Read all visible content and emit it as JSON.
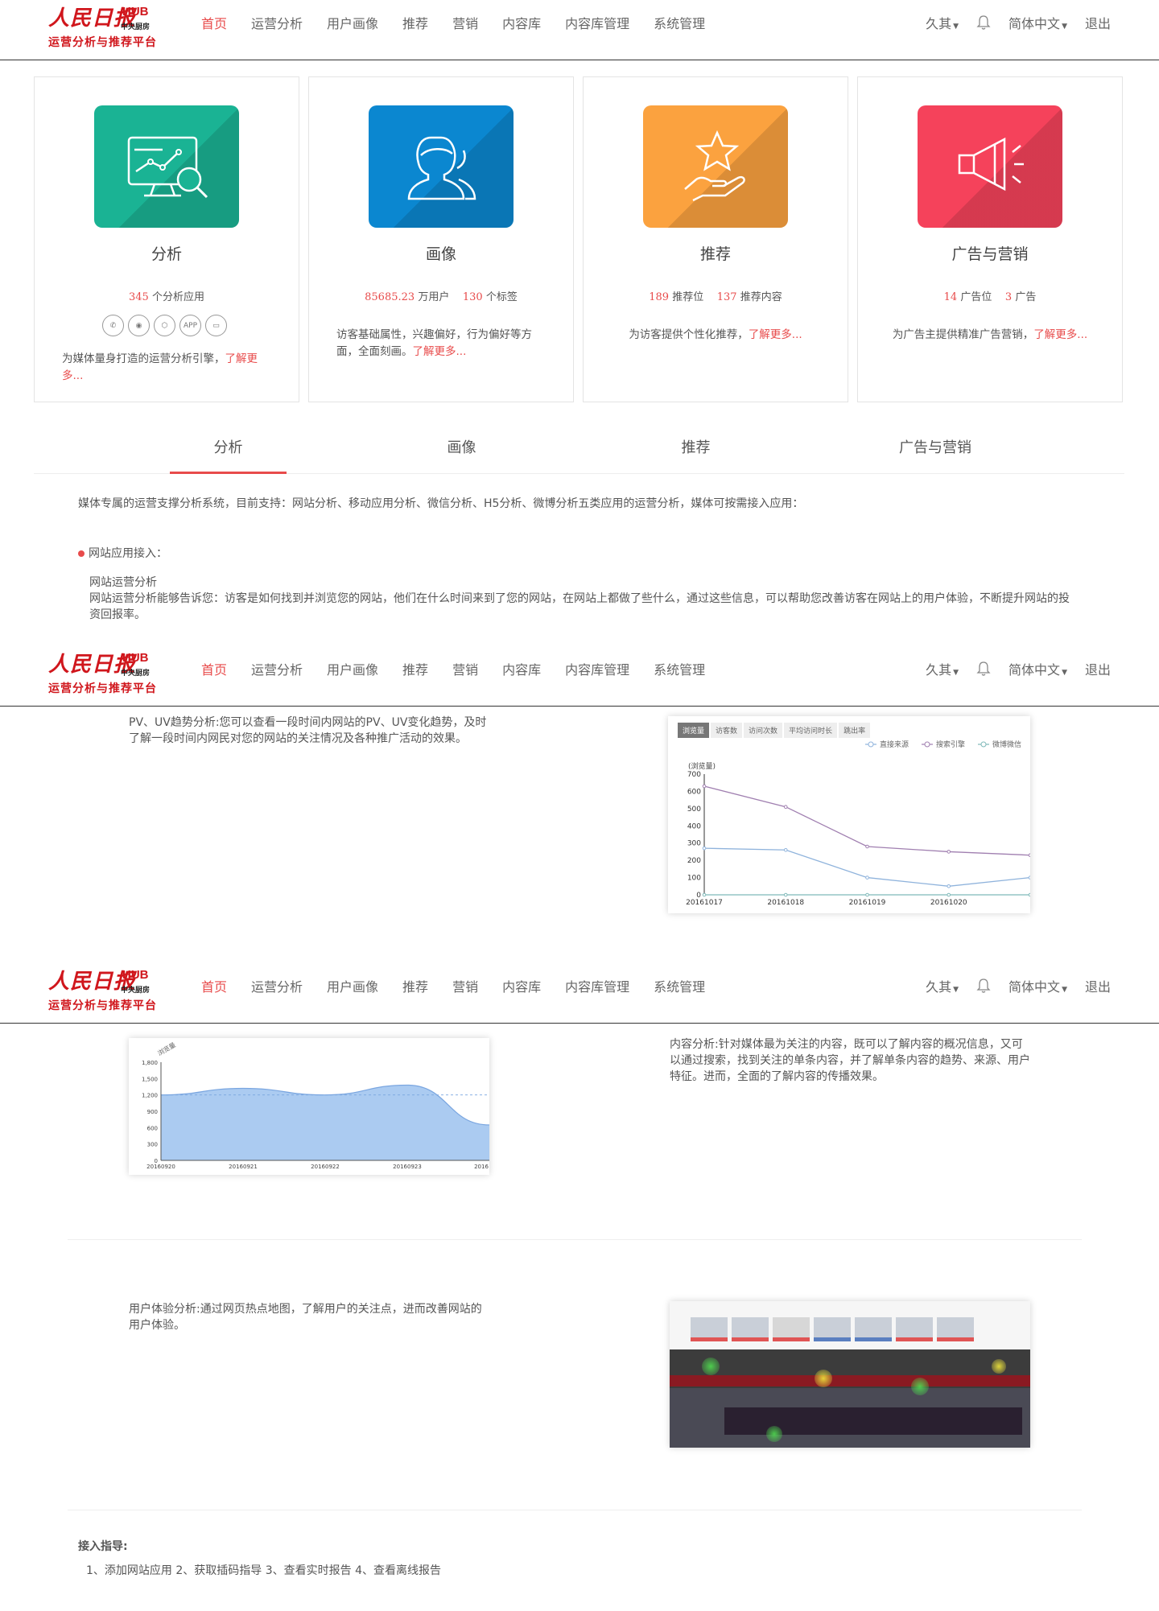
{
  "header": {
    "logo_main": "人民日报",
    "logo_hub": "HUB",
    "logo_sub": "中央厨房",
    "logo_tagline": "运营分析与推荐平台",
    "nav": [
      "首页",
      "运营分析",
      "用户画像",
      "推荐",
      "营销",
      "内容库",
      "内容库管理",
      "系统管理"
    ],
    "user": "久其",
    "language": "简体中文",
    "logout": "退出"
  },
  "cards": [
    {
      "title": "分析",
      "stat1_num": "345",
      "stat1_label": "个分析应用",
      "desc": "为媒体量身打造的运营分析引擎，",
      "more": "了解更多...",
      "icon": "monitor-chart-icon",
      "color": "#1ab394",
      "social": [
        "微信",
        "微博",
        "H5",
        "APP",
        "PC"
      ]
    },
    {
      "title": "画像",
      "stat1_num": "85685.23",
      "stat1_label": "万用户",
      "stat2_num": "130",
      "stat2_label": "个标签",
      "desc": "访客基础属性，兴趣偏好，行为偏好等方面，全面刻画。",
      "more": "了解更多...",
      "icon": "user-profile-icon",
      "color": "#0b87d0"
    },
    {
      "title": "推荐",
      "stat1_num": "189",
      "stat1_label": "推荐位",
      "stat2_num": "137",
      "stat2_label": "推荐内容",
      "desc": "为访客提供个性化推荐，",
      "more": "了解更多...",
      "icon": "hand-star-icon",
      "color": "#fba23f"
    },
    {
      "title": "广告与营销",
      "stat1_num": "14",
      "stat1_label": "广告位",
      "stat2_num": "3",
      "stat2_label": "广告",
      "desc": "为广告主提供精准广告营销，",
      "more": "了解更多...",
      "icon": "megaphone-icon",
      "color": "#f5425b"
    }
  ],
  "tabs": [
    "分析",
    "画像",
    "推荐",
    "广告与营销"
  ],
  "intro": "媒体专属的运营支撑分析系统，目前支持：网站分析、移动应用分析、微信分析、H5分析、微博分析五类应用的运营分析，媒体可按需接入应用：",
  "site_access_title": "网站应用接入：",
  "site_ops_title": "网站运营分析",
  "site_ops_desc": "网站运营分析能够告诉您：访客是如何找到并浏览您的网站，他们在什么时间来到了您的网站，在网站上都做了些什么，通过这些信息，可以帮助您改善访客在网站上的用户体验，不断提升网站的投资回报率。",
  "pv_text": "PV、UV趋势分析:您可以查看一段时间内网站的PV、UV变化趋势，及时了解一段时间内网民对您的网站的关注情况及各种推广活动的效果。",
  "content_text": "内容分析:针对媒体最为关注的内容，既可以了解内容的概况信息，又可以通过搜索，找到关注的单条内容，并了解单条内容的趋势、来源、用户特征。进而，全面的了解内容的传播效果。",
  "ux_text": "用户体验分析:通过网页热点地图，了解用户的关注点，进而改善网站的用户体验。",
  "guide_title": "接入指导:",
  "guide_steps": "1、添加网站应用 2、获取插码指导 3、查看实时报告 4、查看离线报告",
  "chart_data": [
    {
      "type": "line",
      "tabs": [
        "浏览量",
        "访客数",
        "访问次数",
        "平均访问时长",
        "跳出率"
      ],
      "series": [
        {
          "name": "直接来源",
          "color": "#8fb3dc",
          "values": [
            270,
            260,
            100,
            50,
            100
          ]
        },
        {
          "name": "搜索引擎",
          "color": "#a07fb0",
          "values": [
            630,
            510,
            280,
            250,
            230
          ]
        },
        {
          "name": "微博微信",
          "color": "#7fb9b9",
          "values": [
            0,
            0,
            0,
            0,
            0
          ]
        }
      ],
      "x": [
        "20161017",
        "20161018",
        "20161019",
        "20161020",
        ""
      ],
      "ylabel": "(浏览量)",
      "ylim": [
        0,
        700
      ],
      "yticks": [
        "0",
        "100",
        "200",
        "300",
        "400",
        "500",
        "600",
        "700"
      ]
    },
    {
      "type": "area",
      "ylabel": "浏览量",
      "x": [
        "20160920",
        "20160921",
        "20160922",
        "20160923",
        "2016"
      ],
      "values": [
        1200,
        1320,
        1200,
        1380,
        650
      ],
      "ylim": [
        0,
        1800
      ],
      "yticks": [
        "0",
        "300",
        "600",
        "900",
        "1,200",
        "1,500",
        "1,800"
      ],
      "color": "#a6c8f0"
    }
  ]
}
